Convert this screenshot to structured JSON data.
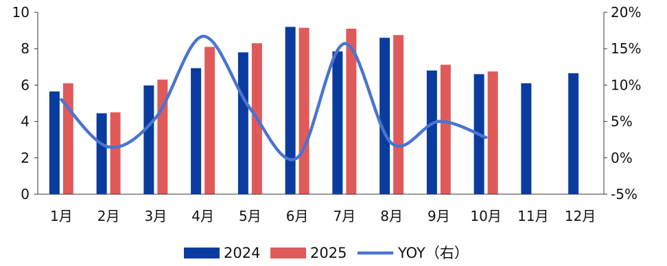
{
  "chart_data": {
    "type": "bar",
    "categories": [
      "1月",
      "2月",
      "3月",
      "4月",
      "5月",
      "6月",
      "7月",
      "8月",
      "9月",
      "10月",
      "11月",
      "12月"
    ],
    "series": [
      {
        "name": "2024",
        "kind": "bar",
        "axis": "left",
        "color": "#0a3ca0",
        "values": [
          5.65,
          4.45,
          5.98,
          6.93,
          7.8,
          9.2,
          7.85,
          8.6,
          6.8,
          6.6,
          6.1,
          6.65
        ]
      },
      {
        "name": "2025",
        "kind": "bar",
        "axis": "left",
        "color": "#e05a5a",
        "values": [
          6.1,
          4.5,
          6.3,
          8.1,
          8.3,
          9.15,
          9.1,
          8.75,
          7.12,
          6.75,
          null,
          null
        ]
      },
      {
        "name": "YOY（右）",
        "kind": "line",
        "axis": "right",
        "color": "#4a74cf",
        "values": [
          8.0,
          1.5,
          5.5,
          16.7,
          6.8,
          0.0,
          15.7,
          2.0,
          5.0,
          2.8,
          null,
          null
        ]
      }
    ],
    "y_left": {
      "min": 0,
      "max": 10,
      "ticks": [
        "0",
        "2",
        "4",
        "6",
        "8",
        "10"
      ]
    },
    "y_right": {
      "min": -5,
      "max": 20,
      "ticks": [
        "-5%",
        "0%",
        "5%",
        "10%",
        "15%",
        "20%"
      ]
    },
    "grid": false,
    "legend_position": "bottom"
  }
}
